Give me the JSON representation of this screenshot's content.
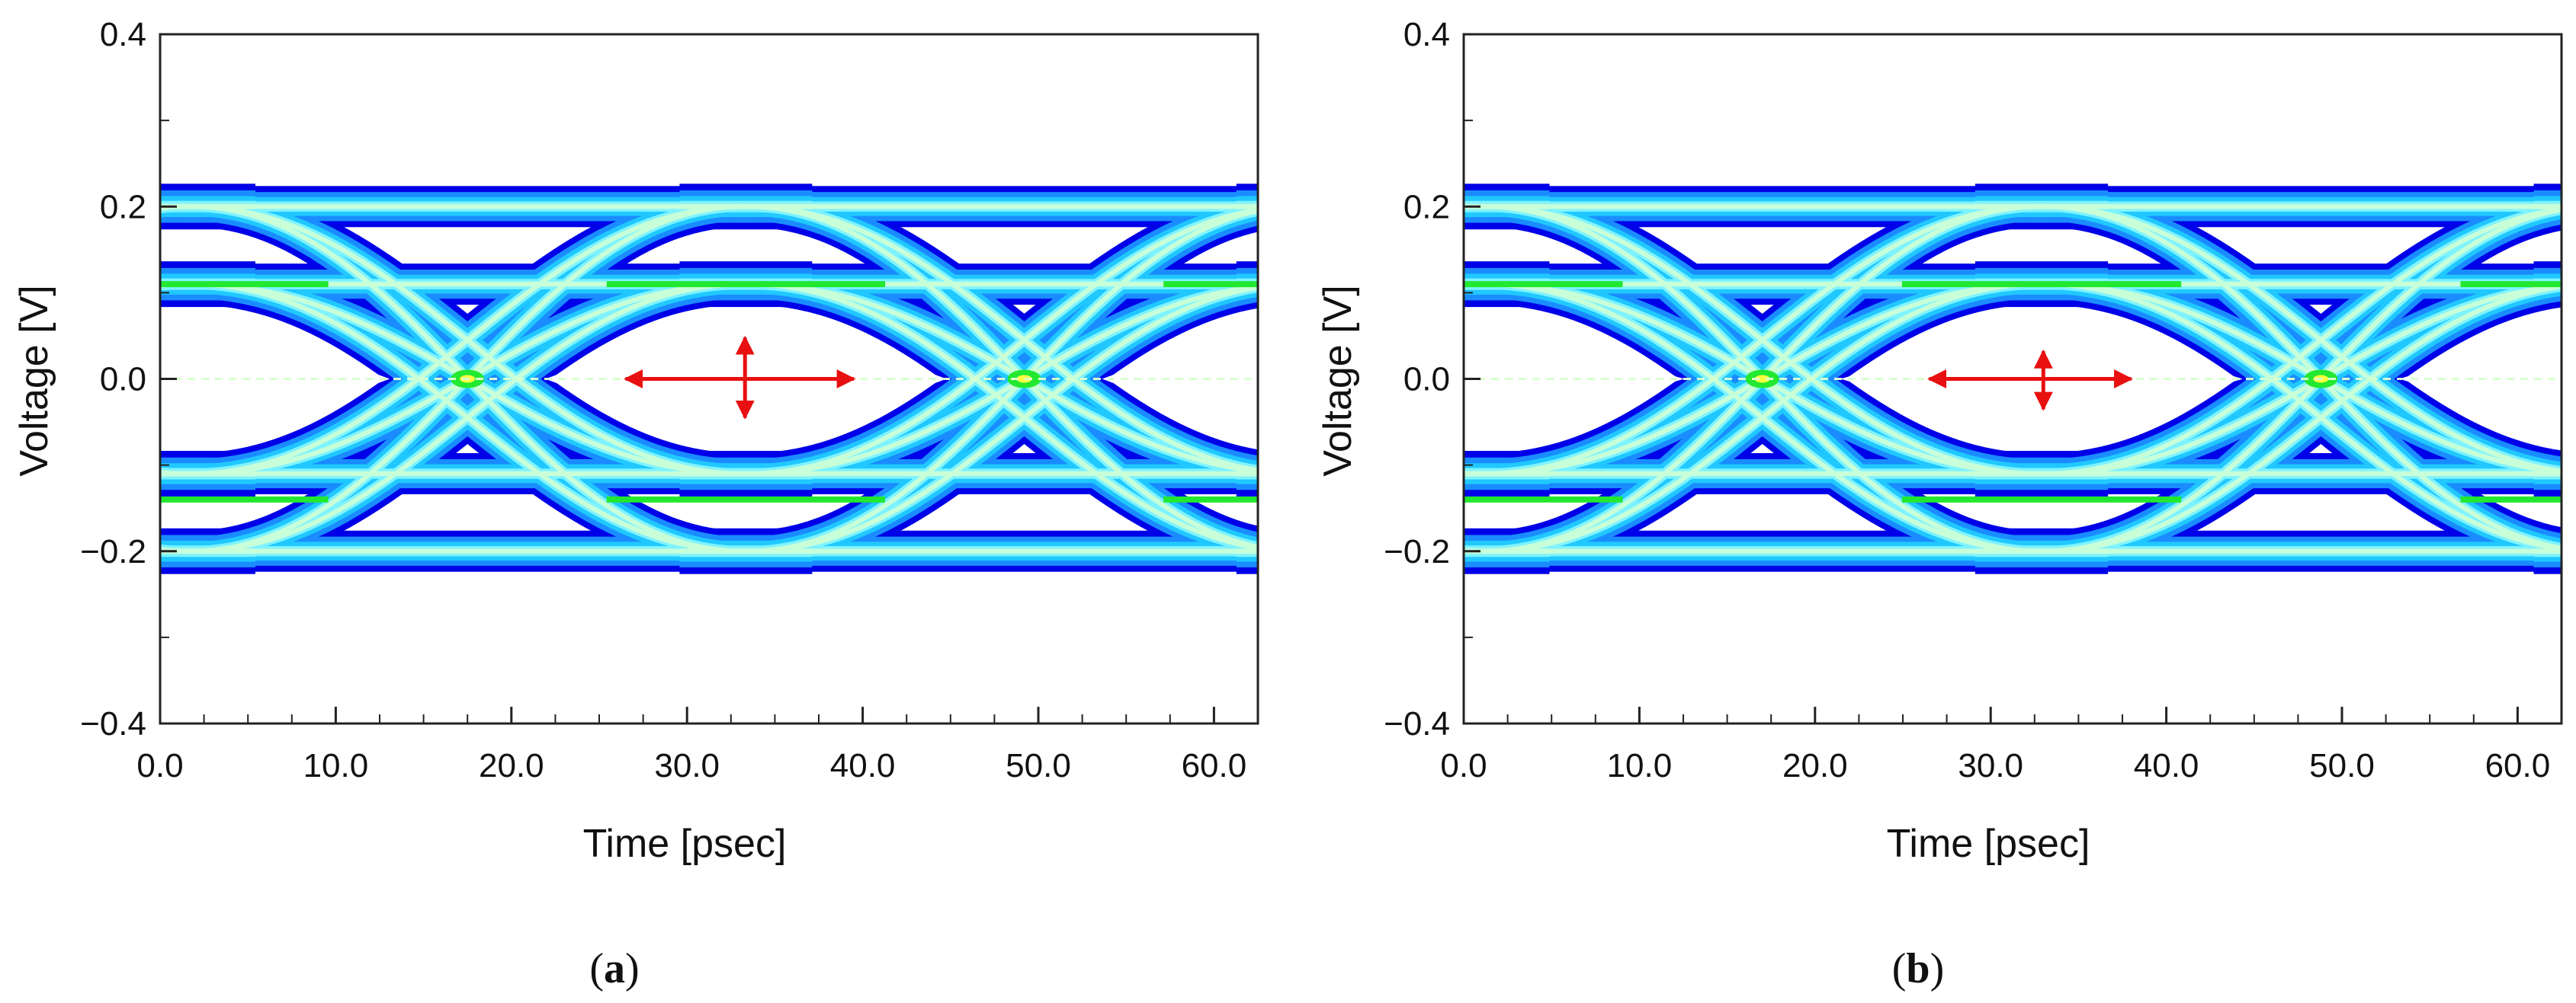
{
  "chart_data": [
    {
      "type": "heatmap",
      "caption": "a",
      "xlabel": "Time [psec]",
      "ylabel": "Voltage [V]",
      "xlim": [
        0,
        62.5
      ],
      "ylim": [
        -0.4,
        0.4
      ],
      "x_ticks": [
        "0.0",
        "10.0",
        "20.0",
        "30.0",
        "40.0",
        "50.0",
        "60.0"
      ],
      "x_tick_values": [
        0,
        10,
        20,
        30,
        40,
        50,
        60
      ],
      "y_ticks": [
        "0.4",
        "0.2",
        "0.0",
        "−0.2",
        "−0.4"
      ],
      "y_tick_values": [
        0.4,
        0.2,
        0.0,
        -0.2,
        -0.4
      ],
      "grid": false,
      "eye": {
        "crossings": [
          17.5,
          49.2
        ],
        "center": 33.3,
        "outer_level": 0.2,
        "inner_level": 0.11,
        "opening_halfheight": 0.045,
        "width_arrow": [
          26.5,
          39.5
        ],
        "height_arrow": [
          -0.045,
          0.048
        ]
      },
      "colors": [
        "#0000e8",
        "#1a8cff",
        "#20c8ff",
        "#7ff3ff",
        "#c8ffd8",
        "#22e830",
        "#ffff40"
      ]
    },
    {
      "type": "heatmap",
      "caption": "b",
      "xlabel": "Time [psec]",
      "ylabel": "Voltage [V]",
      "xlim": [
        0,
        62.5
      ],
      "ylim": [
        -0.4,
        0.4
      ],
      "x_ticks": [
        "0.0",
        "10.0",
        "20.0",
        "30.0",
        "40.0",
        "50.0",
        "60.0"
      ],
      "x_tick_values": [
        0,
        10,
        20,
        30,
        40,
        50,
        60
      ],
      "y_ticks": [
        "0.4",
        "0.2",
        "0.0",
        "−0.2",
        "−0.4"
      ],
      "y_tick_values": [
        0.4,
        0.2,
        0.0,
        -0.2,
        -0.4
      ],
      "grid": false,
      "eye": {
        "crossings": [
          17.0,
          48.8
        ],
        "center": 33.0,
        "outer_level": 0.2,
        "inner_level": 0.11,
        "opening_halfheight": 0.035,
        "width_arrow": [
          26.5,
          38.0
        ],
        "height_arrow": [
          -0.035,
          0.032
        ]
      },
      "colors": [
        "#0000e8",
        "#1a8cff",
        "#20c8ff",
        "#7ff3ff",
        "#c8ffd8",
        "#22e830",
        "#ffff40"
      ]
    }
  ]
}
